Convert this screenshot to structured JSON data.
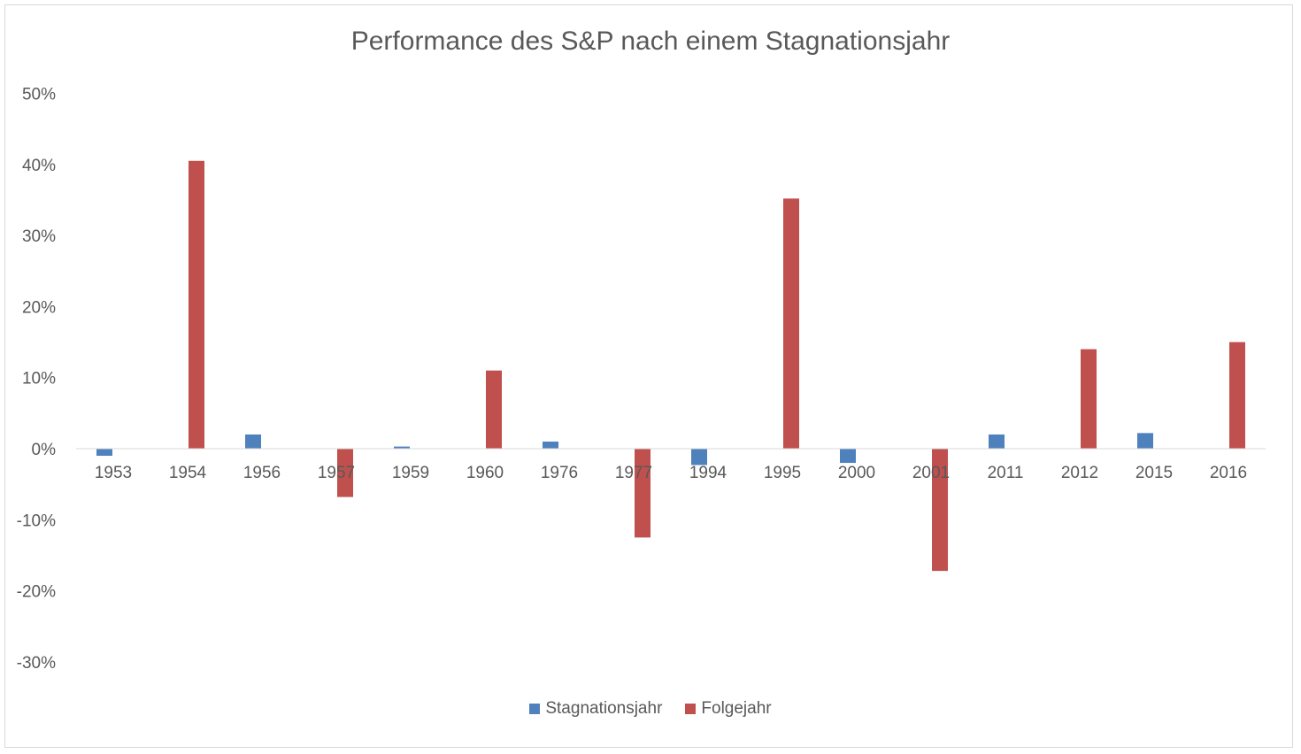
{
  "chart_data": {
    "type": "bar",
    "title": "Performance des S&P nach einem Stagnationsjahr",
    "categories": [
      "1953",
      "1954",
      "1956",
      "1957",
      "1959",
      "1960",
      "1976",
      "1977",
      "1994",
      "1995",
      "2000",
      "2001",
      "2011",
      "2012",
      "2015",
      "2016"
    ],
    "series": [
      {
        "name": "Stagnationsjahr",
        "color": "#4f81bd",
        "values": [
          -1.0,
          null,
          2.0,
          null,
          0.3,
          null,
          1.0,
          null,
          -2.3,
          null,
          -2.0,
          null,
          2.0,
          null,
          2.2,
          null
        ]
      },
      {
        "name": "Folgejahr",
        "color": "#c0504d",
        "values": [
          null,
          40.5,
          null,
          -6.8,
          null,
          11.0,
          null,
          -12.5,
          null,
          35.2,
          null,
          -17.2,
          null,
          14.0,
          null,
          15.0
        ]
      }
    ],
    "ylim": [
      -30,
      50
    ],
    "yticks": [
      50,
      40,
      30,
      20,
      10,
      0,
      -10,
      -20,
      -30
    ],
    "ytick_labels": [
      "50%",
      "40%",
      "30%",
      "20%",
      "10%",
      "0%",
      "-10%",
      "-20%",
      "-30%"
    ],
    "legend_position": "bottom",
    "grid": false
  }
}
